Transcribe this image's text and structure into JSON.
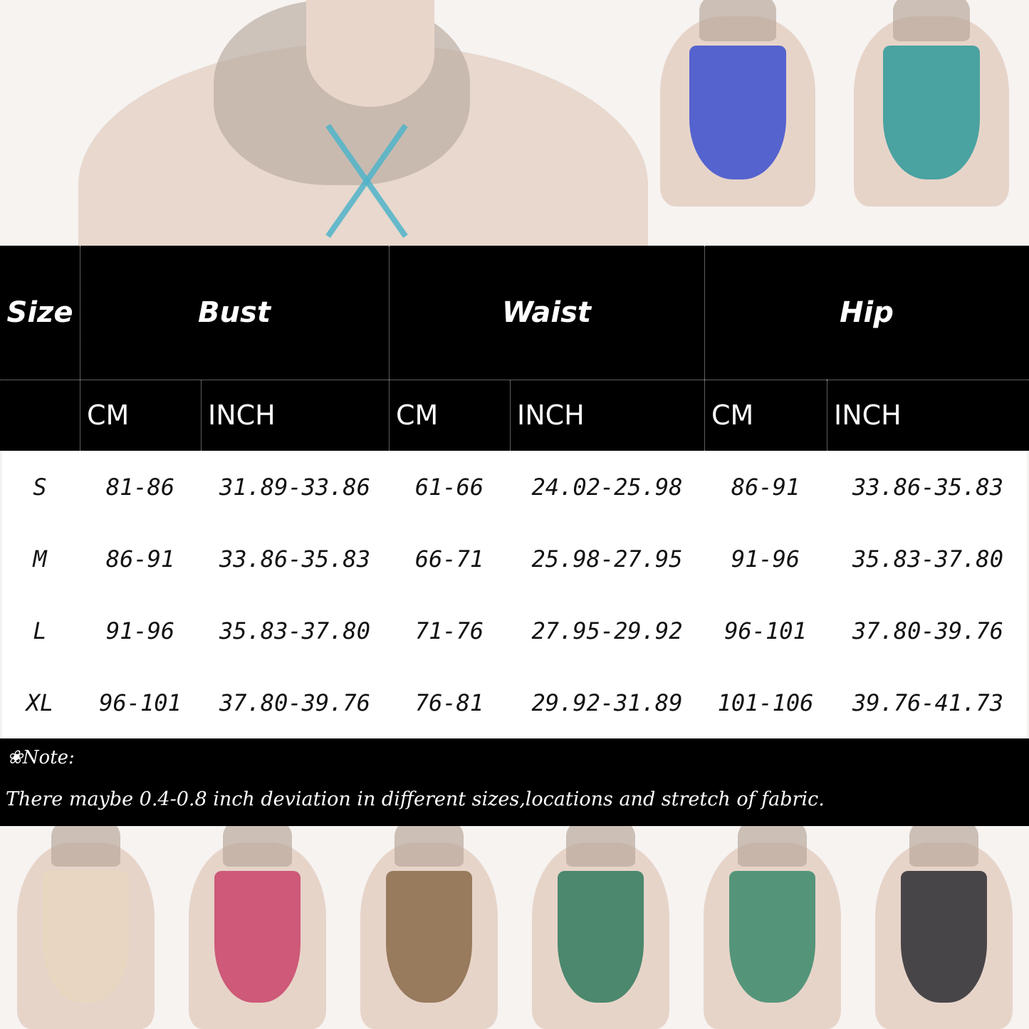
{
  "table": {
    "headers": [
      "Size",
      "Bust",
      "Waist",
      "Hip"
    ],
    "units": [
      "CM",
      "INCH",
      "CM",
      "INCH",
      "CM",
      "INCH"
    ],
    "rows": [
      [
        "S",
        "81-86",
        "31.89-33.86",
        "61-66",
        "24.02-25.98",
        "86-91",
        "33.86-35.83"
      ],
      [
        "M",
        "86-91",
        "33.86-35.83",
        "66-71",
        "25.98-27.95",
        "91-96",
        "35.83-37.80"
      ],
      [
        "L",
        "91-96",
        "35.83-37.80",
        "71-76",
        "27.95-29.92",
        "96-101",
        "37.80-39.76"
      ],
      [
        "XL",
        "96-101",
        "37.80-39.76",
        "76-81",
        "29.92-31.89",
        "101-106",
        "39.76-41.73"
      ]
    ]
  },
  "note": {
    "label": "Note:",
    "icon": "flower-bullet-icon",
    "text": "There maybe 0.4-0.8 inch deviation in different sizes,locations and stretch of fabric."
  },
  "swatches": {
    "top": [
      "#3b4fd0",
      "#2e9a9a"
    ],
    "bottom": [
      "#e8d6c0",
      "#c9436a",
      "#8a6a4a",
      "#2f7a5e",
      "#3a8a6c",
      "#2b2b33"
    ]
  }
}
